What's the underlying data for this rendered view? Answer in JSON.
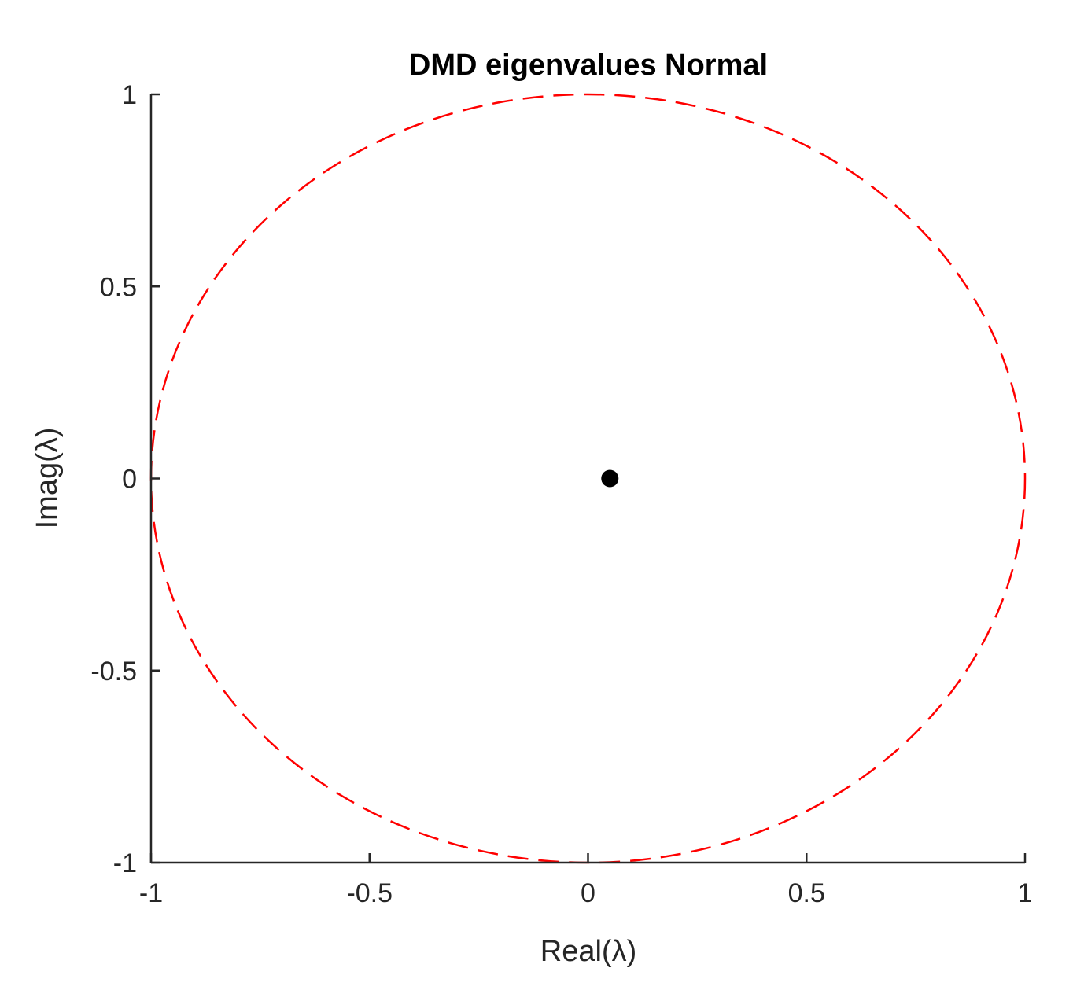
{
  "chart_data": {
    "type": "scatter",
    "title": "DMD eigenvalues Normal",
    "xlabel": "Real(λ)",
    "ylabel": "Imag(λ)",
    "xlim": [
      -1,
      1
    ],
    "ylim": [
      -1,
      1
    ],
    "x_ticks": [
      -1,
      -0.5,
      0,
      0.5,
      1
    ],
    "x_tick_labels": [
      "-1",
      "-0.5",
      "0",
      "0.5",
      "1"
    ],
    "y_ticks": [
      -1,
      -0.5,
      0,
      0.5,
      1
    ],
    "y_tick_labels": [
      "-1",
      "-0.5",
      "0",
      "0.5",
      "1"
    ],
    "grid": false,
    "series": [
      {
        "kind": "points",
        "color": "#000000",
        "points": [
          {
            "x": 0.05,
            "y": 0.0
          }
        ]
      },
      {
        "kind": "unit-circle",
        "color": "#ff0000",
        "line_style": "dashed",
        "center": [
          0,
          0
        ],
        "radius": 1
      }
    ]
  }
}
